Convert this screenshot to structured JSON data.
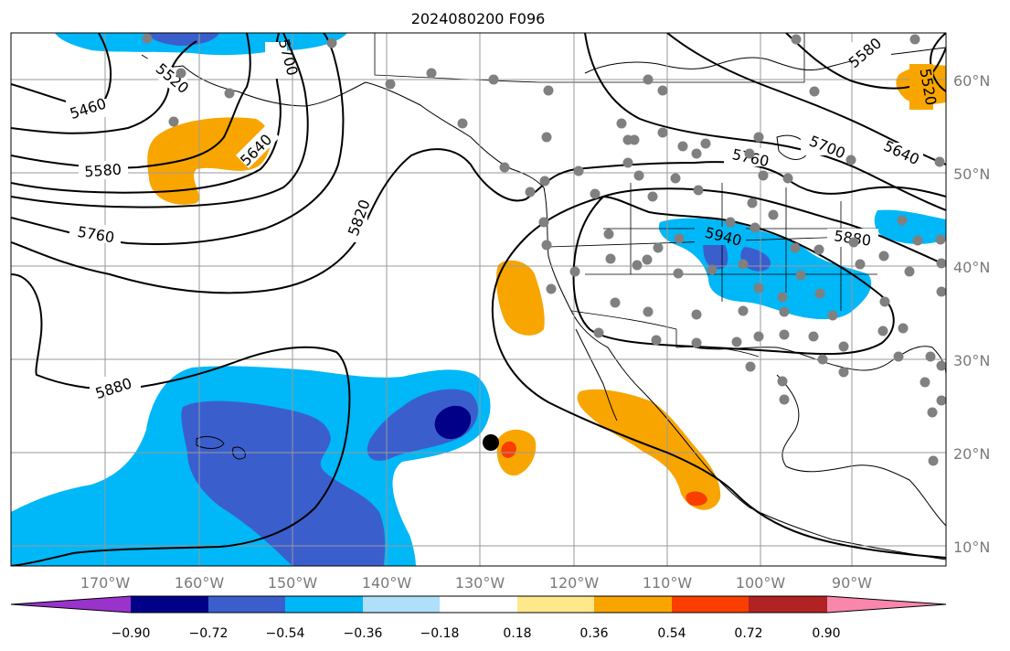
{
  "title": "2024080200 F096",
  "map": {
    "lat_labels": [
      "60°N",
      "50°N",
      "40°N",
      "30°N",
      "20°N",
      "10°N"
    ],
    "lon_labels": [
      "170°W",
      "160°W",
      "150°W",
      "140°W",
      "130°W",
      "120°W",
      "110°W",
      "100°W",
      "90°W"
    ],
    "contour_labels": [
      "5460",
      "5520",
      "5580",
      "5640",
      "5700",
      "5760",
      "5820",
      "5880",
      "5940",
      "5580",
      "5520",
      "5640",
      "5700",
      "5760",
      "5880"
    ]
  },
  "colorbar": {
    "tick_labels": [
      "−0.90",
      "−0.72",
      "−0.54",
      "−0.36",
      "−0.18",
      "0.18",
      "0.36",
      "0.54",
      "0.72",
      "0.90"
    ],
    "colors": [
      "#9933cc",
      "#000088",
      "#3a5fcd",
      "#00b7f7",
      "#aee0fa",
      "#ffffff",
      "#fde98a",
      "#f9a500",
      "#f93e00",
      "#b22222",
      "#f986ab"
    ]
  }
}
